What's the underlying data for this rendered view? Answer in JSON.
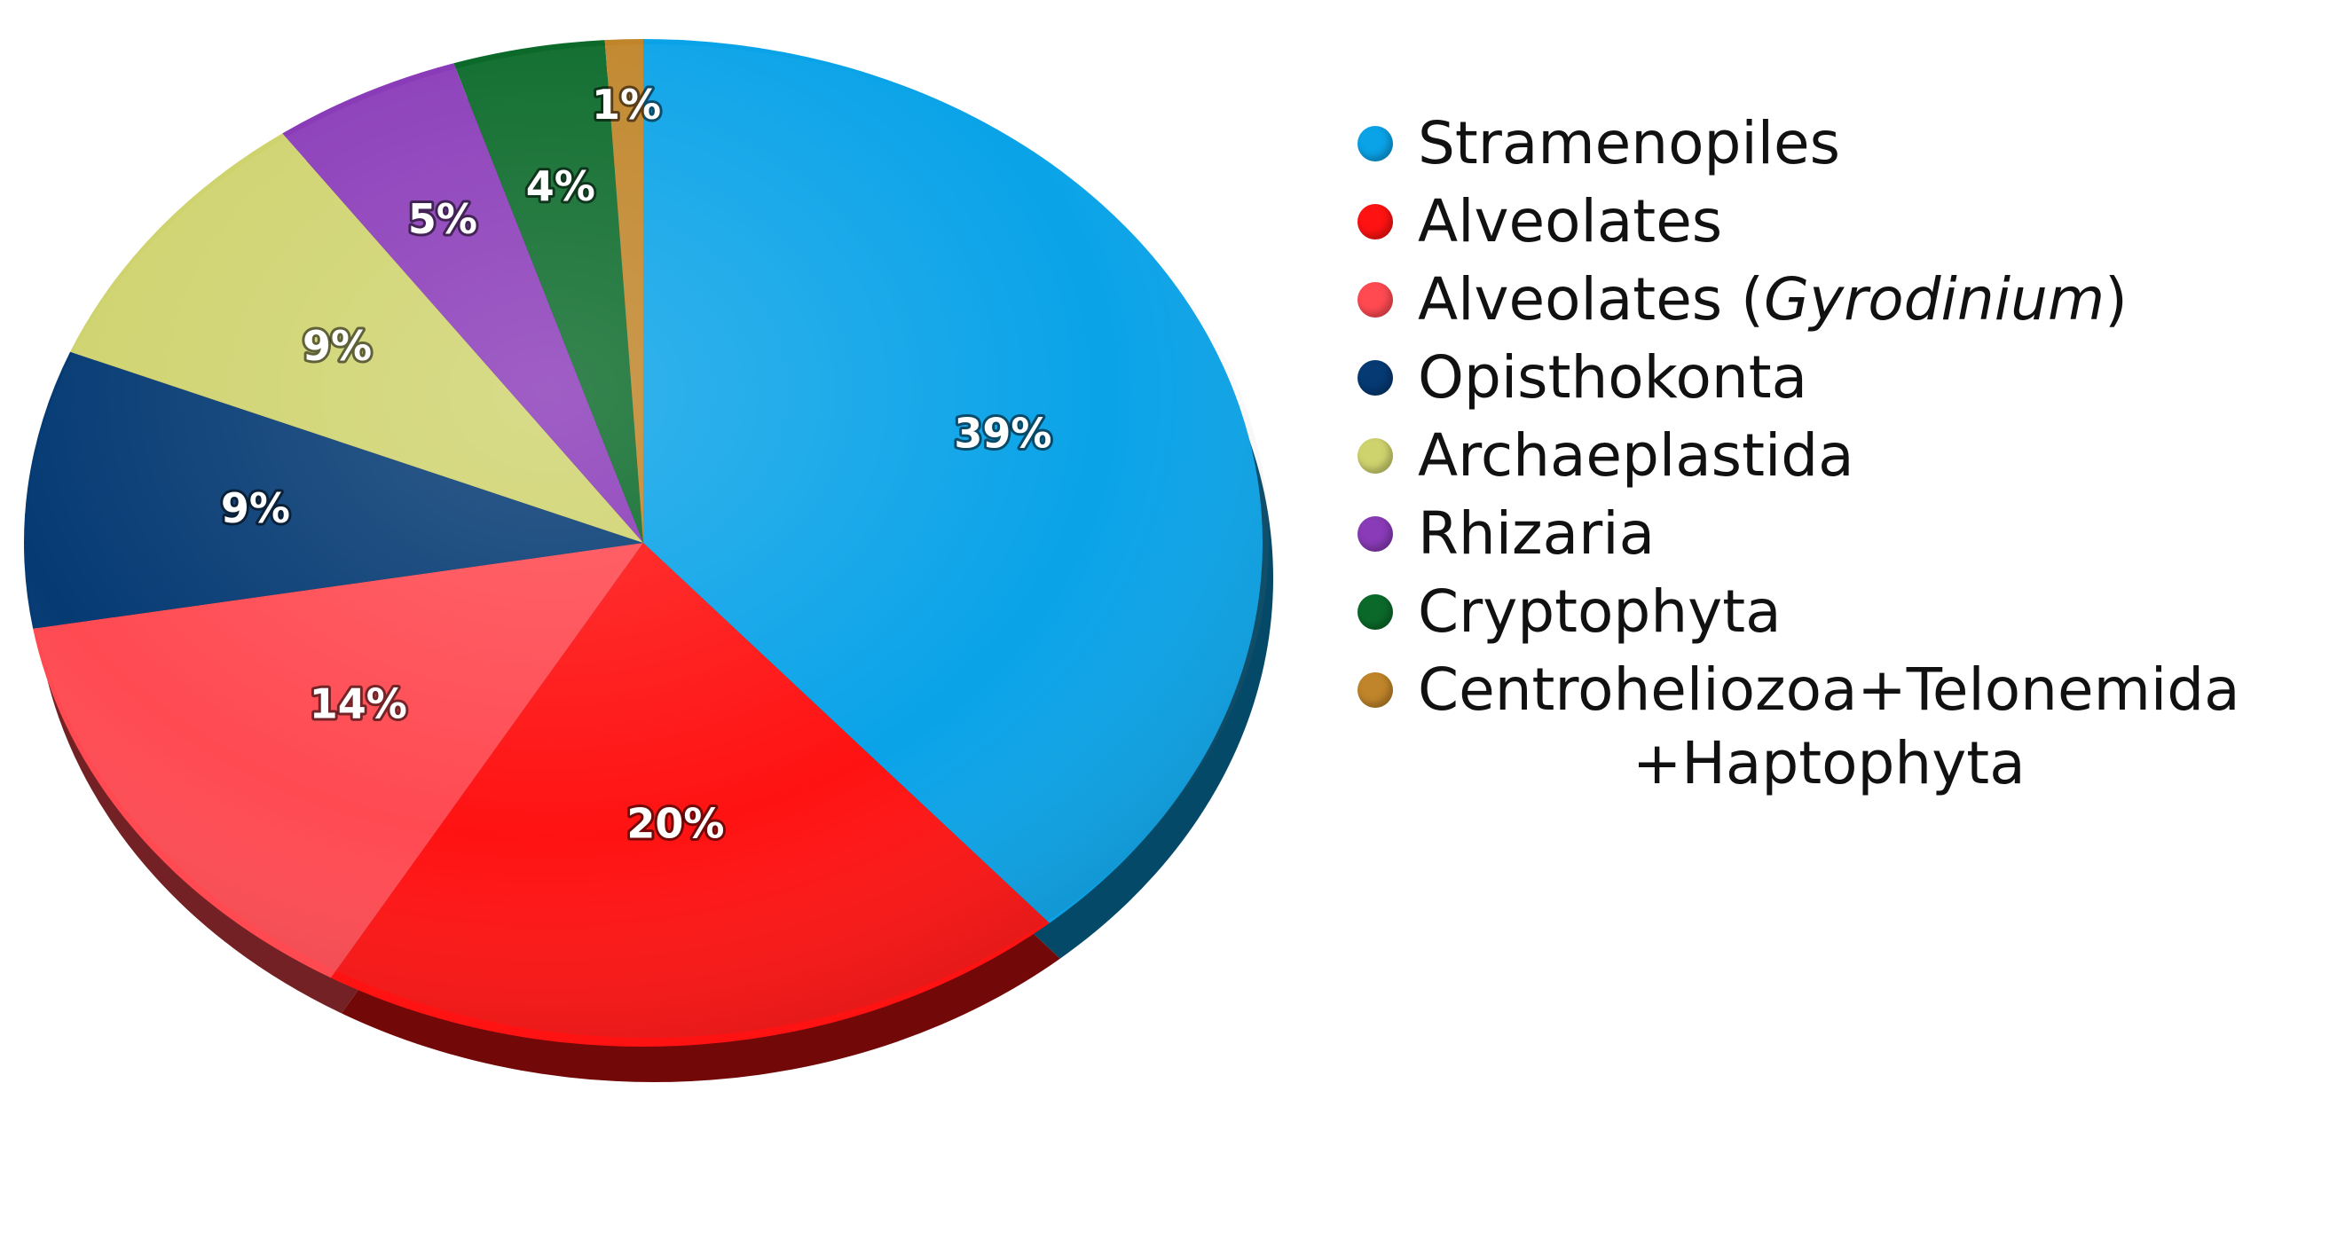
{
  "chart_data": {
    "type": "pie",
    "title": "",
    "legend_position": "right",
    "slices": [
      {
        "name": "Stramenopiles",
        "value": 39,
        "label": "39%",
        "color": "#0aa3e8"
      },
      {
        "name": "Alveolates",
        "value": 20,
        "label": "20%",
        "color": "#ff1212"
      },
      {
        "name": "Alveolates (Gyrodinium)",
        "value": 14,
        "label": "14%",
        "color": "#ff4a52"
      },
      {
        "name": "Opisthokonta",
        "value": 9,
        "label": "9%",
        "color": "#053a73"
      },
      {
        "name": "Archaeplastida",
        "value": 9,
        "label": "9%",
        "color": "#cfd36e"
      },
      {
        "name": "Rhizaria",
        "value": 5,
        "label": "5%",
        "color": "#8a3bb8"
      },
      {
        "name": "Cryptophyta",
        "value": 4,
        "label": "4%",
        "color": "#0b6a2a"
      },
      {
        "name": "Centroheliozoa+Telonemida +Haptophyta",
        "value": 1,
        "label": "1%",
        "color": "#c0852a"
      }
    ]
  },
  "legend": {
    "items": [
      {
        "text": "Stramenopiles",
        "color": "#0aa3e8"
      },
      {
        "text": "Alveolates",
        "color": "#ff1212"
      },
      {
        "text_pre": "Alveolates (",
        "text_italic": "Gyrodinium",
        "text_post": ")",
        "color": "#ff4a52"
      },
      {
        "text": "Opisthokonta",
        "color": "#053a73"
      },
      {
        "text": "Archaeplastida",
        "color": "#cfd36e"
      },
      {
        "text": "Rhizaria",
        "color": "#8a3bb8"
      },
      {
        "text": "Cryptophyta",
        "color": "#0b6a2a"
      },
      {
        "text": "Centroheliozoa+Telonemida",
        "text_cont": "+Haptophyta",
        "color": "#c0852a"
      }
    ]
  }
}
